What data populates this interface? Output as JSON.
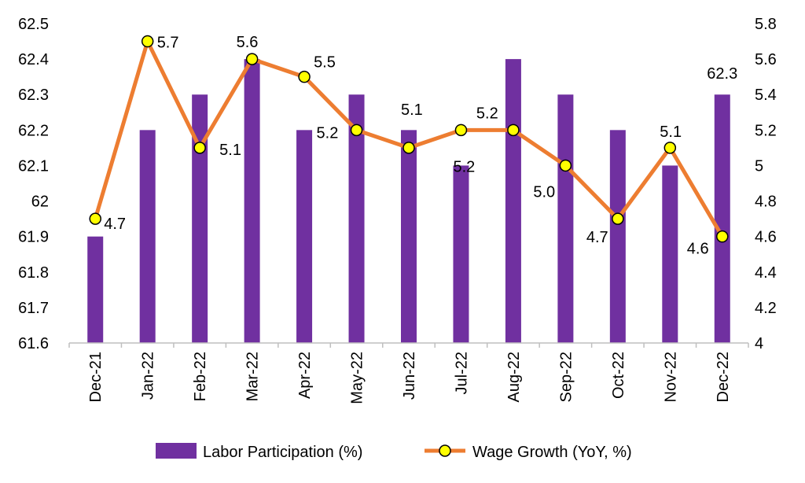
{
  "chart_data": {
    "type": "bar+line",
    "categories": [
      "Dec-21",
      "Jan-22",
      "Feb-22",
      "Mar-22",
      "Apr-22",
      "May-22",
      "Jun-22",
      "Jul-22",
      "Aug-22",
      "Sep-22",
      "Oct-22",
      "Nov-22",
      "Dec-22"
    ],
    "series": [
      {
        "name": "Labor Participation (%)",
        "type": "bar",
        "axis": "left",
        "color": "#7030A0",
        "values": [
          61.9,
          62.2,
          62.3,
          62.4,
          62.2,
          62.3,
          62.2,
          62.1,
          62.4,
          62.3,
          62.2,
          62.1,
          62.3
        ]
      },
      {
        "name": "Wage Growth (YoY, %)",
        "type": "line",
        "axis": "right",
        "color": "#ED7D31",
        "marker_fill": "#FFFF00",
        "values": [
          4.7,
          5.7,
          5.1,
          5.6,
          5.5,
          5.2,
          5.1,
          5.2,
          5.2,
          5.0,
          4.7,
          5.1,
          4.6
        ]
      }
    ],
    "bar_data_labels": [
      {
        "category": "Dec-22",
        "text": "62.3"
      }
    ],
    "line_data_labels": [
      "4.7",
      "5.7",
      "5.1",
      "5.6",
      "5.5",
      "5.2",
      "5.1",
      "5.2",
      "5.2",
      "5.0",
      "4.7",
      "5.1",
      "4.6"
    ],
    "left_axis": {
      "ylim": [
        61.6,
        62.5
      ],
      "ticks": [
        "61.6",
        "61.7",
        "61.8",
        "61.9",
        "62",
        "62.1",
        "62.2",
        "62.3",
        "62.4",
        "62.5"
      ]
    },
    "right_axis": {
      "ylim": [
        4,
        5.8
      ],
      "ticks": [
        "4",
        "4.2",
        "4.4",
        "4.6",
        "4.8",
        "5",
        "5.2",
        "5.4",
        "5.6",
        "5.8"
      ]
    },
    "grid": false,
    "legend_position": "bottom"
  }
}
